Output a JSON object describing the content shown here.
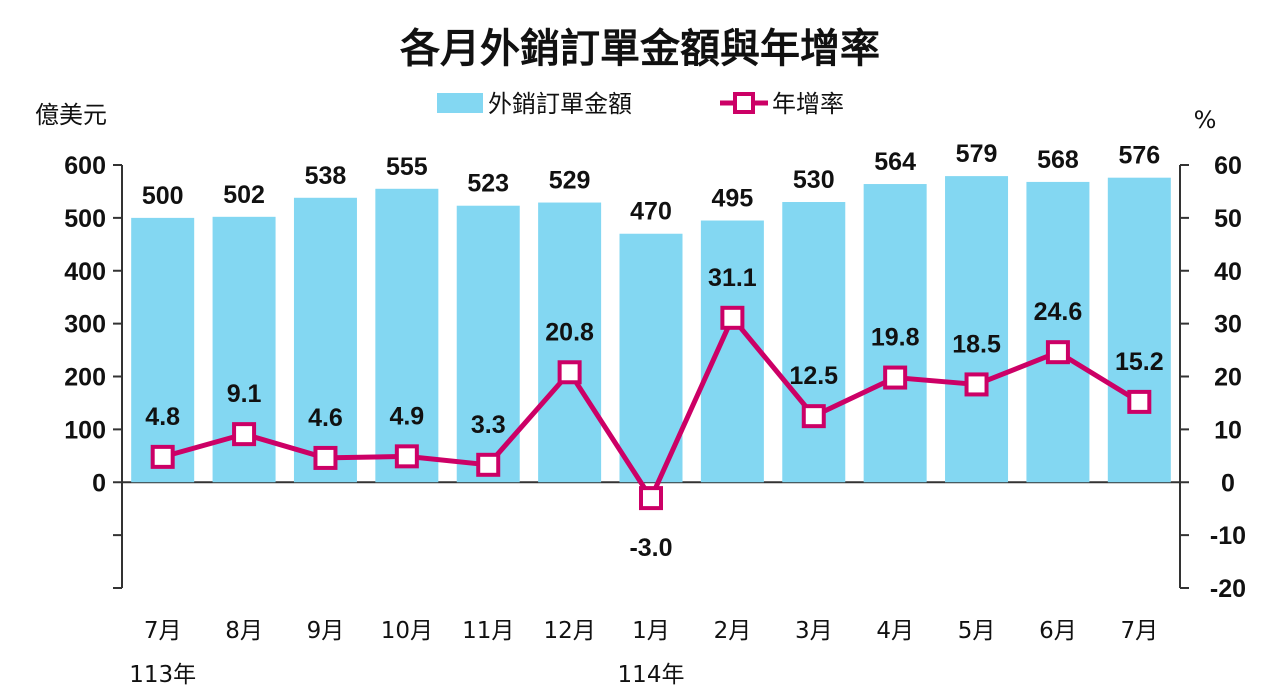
{
  "chart_data": {
    "type": "bar",
    "title": "各月外銷訂單金額與年增率",
    "ylabel_left": "億美元",
    "ylabel_right": "%",
    "categories": [
      "7月",
      "8月",
      "9月",
      "10月",
      "11月",
      "12月",
      "1月",
      "2月",
      "3月",
      "4月",
      "5月",
      "6月",
      "7月"
    ],
    "year_labels": [
      {
        "label": "113年",
        "category_index": 0
      },
      {
        "label": "114年",
        "category_index": 6
      }
    ],
    "series": [
      {
        "name": "外銷訂單金額",
        "type": "bar",
        "axis": "left",
        "color": "#83D7F2",
        "values": [
          500,
          502,
          538,
          555,
          523,
          529,
          470,
          495,
          530,
          564,
          579,
          568,
          576
        ],
        "labels": [
          "500",
          "502",
          "538",
          "555",
          "523",
          "529",
          "470",
          "495",
          "530",
          "564",
          "579",
          "568",
          "576"
        ]
      },
      {
        "name": "年增率",
        "type": "line",
        "axis": "right",
        "color": "#CC0066",
        "values": [
          4.8,
          9.1,
          4.6,
          4.9,
          3.3,
          20.8,
          -3.0,
          31.1,
          12.5,
          19.8,
          18.5,
          24.6,
          15.2
        ],
        "labels": [
          "4.8",
          "9.1",
          "4.6",
          "4.9",
          "3.3",
          "20.8",
          "-3.0",
          "31.1",
          "12.5",
          "19.8",
          "18.5",
          "24.6",
          "15.2"
        ]
      }
    ],
    "left_axis": {
      "ylim": [
        -200,
        600
      ],
      "ticks": [
        600,
        500,
        400,
        300,
        200,
        100,
        0,
        -100,
        -200
      ],
      "tick_labels": [
        "600",
        "500",
        "400",
        "300",
        "200",
        "100",
        "0",
        "",
        ""
      ]
    },
    "right_axis": {
      "ylim": [
        -20,
        60
      ],
      "ticks": [
        60,
        50,
        40,
        30,
        20,
        10,
        0,
        -10,
        -20
      ],
      "tick_labels": [
        "60",
        "50",
        "40",
        "30",
        "20",
        "10",
        "0",
        "-10",
        "-20"
      ]
    },
    "grid": false,
    "legend_position": "top-center"
  }
}
